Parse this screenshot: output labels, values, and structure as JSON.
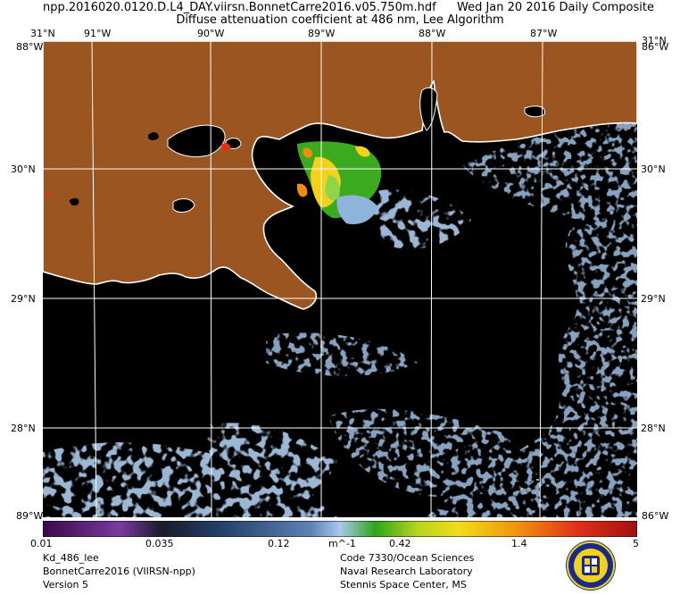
{
  "header": {
    "filename": "npp.2016020.0120.D.L4_DAY.viirsn.BonnetCarre2016.v05.750m.hdf",
    "date": "Wed Jan 20 2016 Daily Composite",
    "product": "Diffuse attenuation coefficient at 486 nm, Lee Algorithm"
  },
  "axes": {
    "lon_labels": [
      "31°N",
      "91°W",
      "90°W",
      "89°W",
      "88°W",
      "87°W",
      "31°N"
    ],
    "lat_labels_left": [
      "30°N",
      "29°N",
      "28°N"
    ],
    "lat_labels_right": [
      "30°N",
      "29°N",
      "28°N"
    ],
    "corner_top_left": "88°W",
    "corner_top_right": "86°W",
    "corner_bottom_left": "89°W",
    "corner_bottom_right": "86°W"
  },
  "colorbar": {
    "ticks": [
      "0.01",
      "0.035",
      "0.12",
      "m^-1",
      "0.42",
      "1.4",
      "5"
    ]
  },
  "footer": {
    "left": [
      "Kd_486_lee",
      "BonnetCarre2016 (VIIRSN-npp)",
      "Version 5"
    ],
    "right": [
      "Code 7330/Ocean Sciences",
      "Naval Research Laboratory",
      "Stennis Space Center, MS"
    ]
  },
  "colors": {
    "land": "#9a5520",
    "ocean_nodata": "#000000",
    "coast": "#ffffff",
    "grid": "#ffffff",
    "low_kd": "#3d5d86",
    "mid_kd": "#8fb4dc",
    "high_kd_green": "#3caa1e",
    "high_kd_yellow": "#f2d21a",
    "high_kd_orange": "#f08c10"
  }
}
